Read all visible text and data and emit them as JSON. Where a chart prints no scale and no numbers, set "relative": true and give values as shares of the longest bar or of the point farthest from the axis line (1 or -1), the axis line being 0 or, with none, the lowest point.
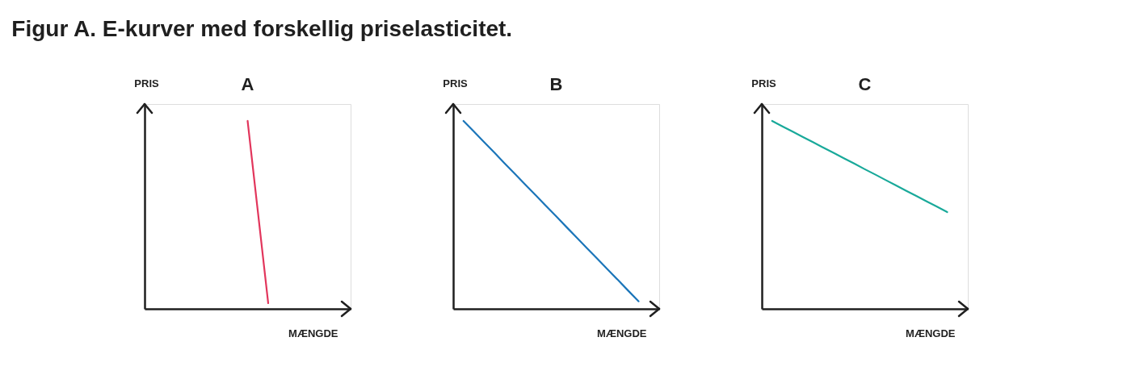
{
  "chart_data": [
    {
      "type": "other",
      "title": "Figur A. E-kurver med forskellig priselasticitet."
    },
    {
      "type": "line",
      "title": "A",
      "xlabel": "MÆNGDE",
      "ylabel": "PRIS",
      "relative": true,
      "categories": [
        null,
        null,
        null,
        null,
        null,
        null,
        null,
        null,
        null,
        null,
        null,
        null,
        null,
        null,
        null,
        null,
        null,
        null,
        null,
        null,
        null
      ],
      "series": [
        {
          "color": "#e2365c",
          "values": [
            null,
            null,
            null,
            null,
            null,
            null,
            null,
            null,
            null,
            null,
            1,
            0.515,
            0.03,
            null,
            null,
            null,
            null,
            null,
            null,
            null,
            null
          ]
        }
      ]
    },
    {
      "type": "line",
      "title": "B",
      "xlabel": "MÆNGDE",
      "ylabel": "PRIS",
      "relative": true,
      "categories": [
        null,
        null,
        null,
        null,
        null,
        null,
        null,
        null,
        null,
        null,
        null,
        null,
        null,
        null,
        null,
        null,
        null,
        null,
        null,
        null,
        null
      ],
      "series": [
        {
          "color": "#1b75b9",
          "values": [
            null,
            1,
            0.944,
            0.887,
            0.831,
            0.774,
            0.718,
            0.661,
            0.605,
            0.548,
            0.492,
            0.435,
            0.379,
            0.322,
            0.266,
            0.209,
            0.153,
            0.096,
            0.04,
            null,
            null
          ]
        }
      ]
    },
    {
      "type": "line",
      "title": "C",
      "xlabel": "MÆNGDE",
      "ylabel": "PRIS",
      "relative": true,
      "categories": [
        null,
        null,
        null,
        null,
        null,
        null,
        null,
        null,
        null,
        null,
        null,
        null,
        null,
        null,
        null,
        null,
        null,
        null,
        null,
        null,
        null
      ],
      "series": [
        {
          "color": "#19a99a",
          "values": [
            null,
            1,
            0.971,
            0.943,
            0.914,
            0.886,
            0.857,
            0.829,
            0.8,
            0.772,
            0.743,
            0.715,
            0.686,
            0.658,
            0.629,
            0.601,
            0.572,
            0.544,
            0.515,
            null,
            null
          ]
        }
      ]
    }
  ]
}
